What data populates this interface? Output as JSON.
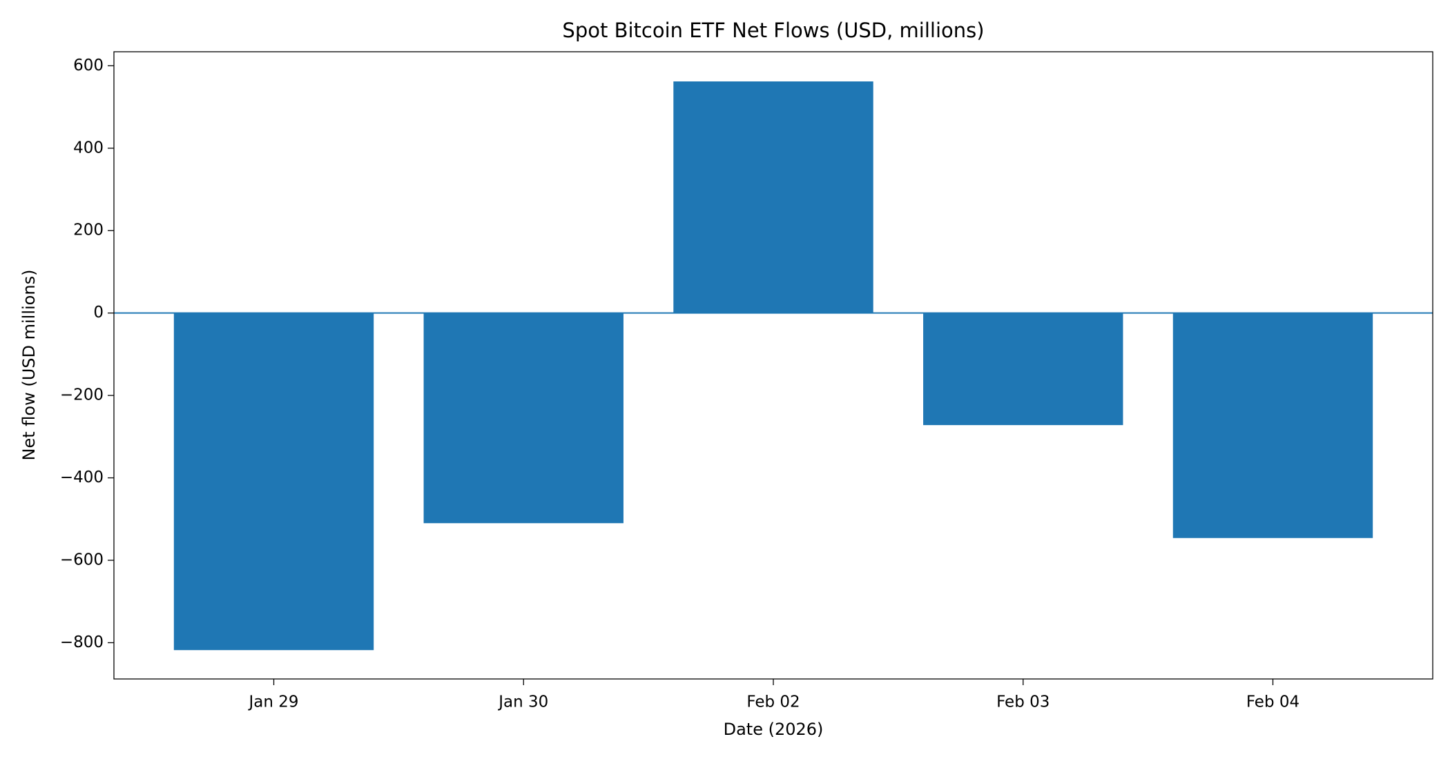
{
  "chart_data": {
    "type": "bar",
    "title": "Spot Bitcoin ETF Net Flows (USD, millions)",
    "x_label": "Date (2026)",
    "y_label": "Net flow (USD millions)",
    "categories": [
      "Jan 29",
      "Jan 30",
      "Feb 02",
      "Feb 03",
      "Feb 04"
    ],
    "values": [
      -818,
      -510,
      562,
      -272,
      -546
    ],
    "color": "#1f77b4",
    "ylim": [
      -888,
      634
    ],
    "yticks": [
      {
        "value": -800,
        "label": "−800"
      },
      {
        "value": -600,
        "label": "−600"
      },
      {
        "value": -400,
        "label": "−400"
      },
      {
        "value": -200,
        "label": "−200"
      },
      0,
      200,
      400,
      600
    ],
    "zero_line": true,
    "grid": false
  }
}
